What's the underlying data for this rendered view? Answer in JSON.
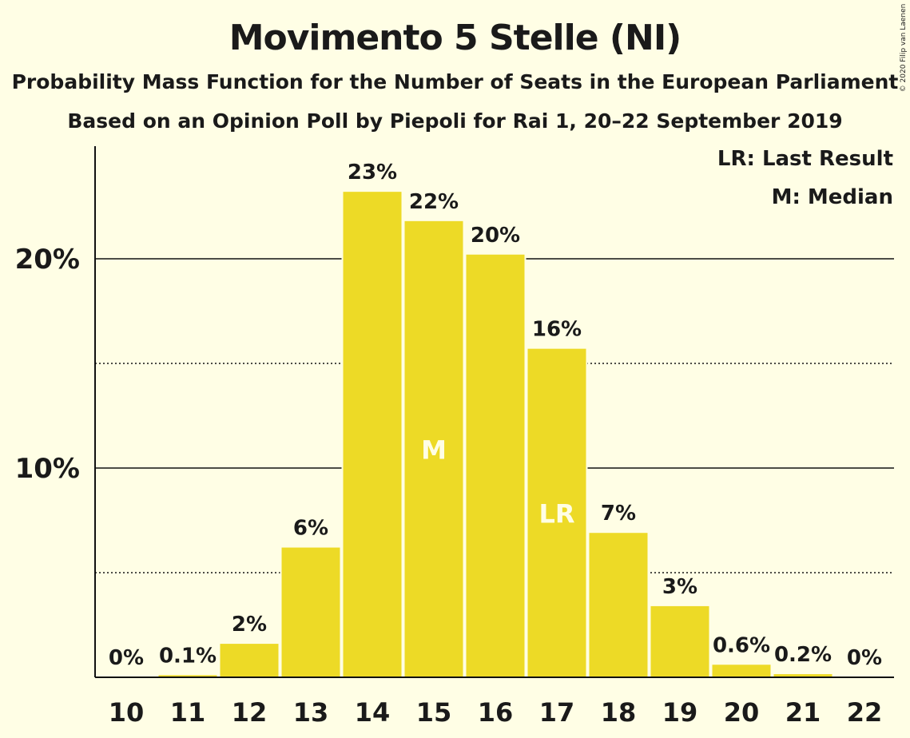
{
  "header": {
    "title": "Movimento 5 Stelle (NI)",
    "subtitle1": "Probability Mass Function for the Number of Seats in the European Parliament",
    "subtitle2": "Based on an Opinion Poll by Piepoli for Rai 1, 20–22 September 2019",
    "copyright": "© 2020 Filip van Laenen"
  },
  "legend": {
    "last_result": "LR: Last Result",
    "median": "M: Median"
  },
  "colors": {
    "background": "#FFFEE5",
    "bar": "#EDDA26",
    "marker_text": "#FFFEE5"
  },
  "chart_data": {
    "type": "bar",
    "title": "Movimento 5 Stelle (NI)",
    "xlabel": "",
    "ylabel": "",
    "categories": [
      "10",
      "11",
      "12",
      "13",
      "14",
      "15",
      "16",
      "17",
      "18",
      "19",
      "20",
      "21",
      "22"
    ],
    "values": [
      0,
      0.1,
      1.6,
      6.2,
      23.2,
      21.8,
      20.2,
      15.7,
      6.9,
      3.4,
      0.6,
      0.15,
      0
    ],
    "labels": [
      "0%",
      "0.1%",
      "2%",
      "6%",
      "23%",
      "22%",
      "20%",
      "16%",
      "7%",
      "3%",
      "0.6%",
      "0.2%",
      "0%"
    ],
    "ylim": [
      0,
      25
    ],
    "y_ticks": [
      {
        "value": 10,
        "label": "10%"
      },
      {
        "value": 20,
        "label": "20%"
      }
    ],
    "dotted_gridlines": [
      5,
      15
    ],
    "markers": [
      {
        "category": "15",
        "text": "M"
      },
      {
        "category": "17",
        "text": "LR"
      }
    ],
    "legend_position": "top-right",
    "grid": true
  }
}
